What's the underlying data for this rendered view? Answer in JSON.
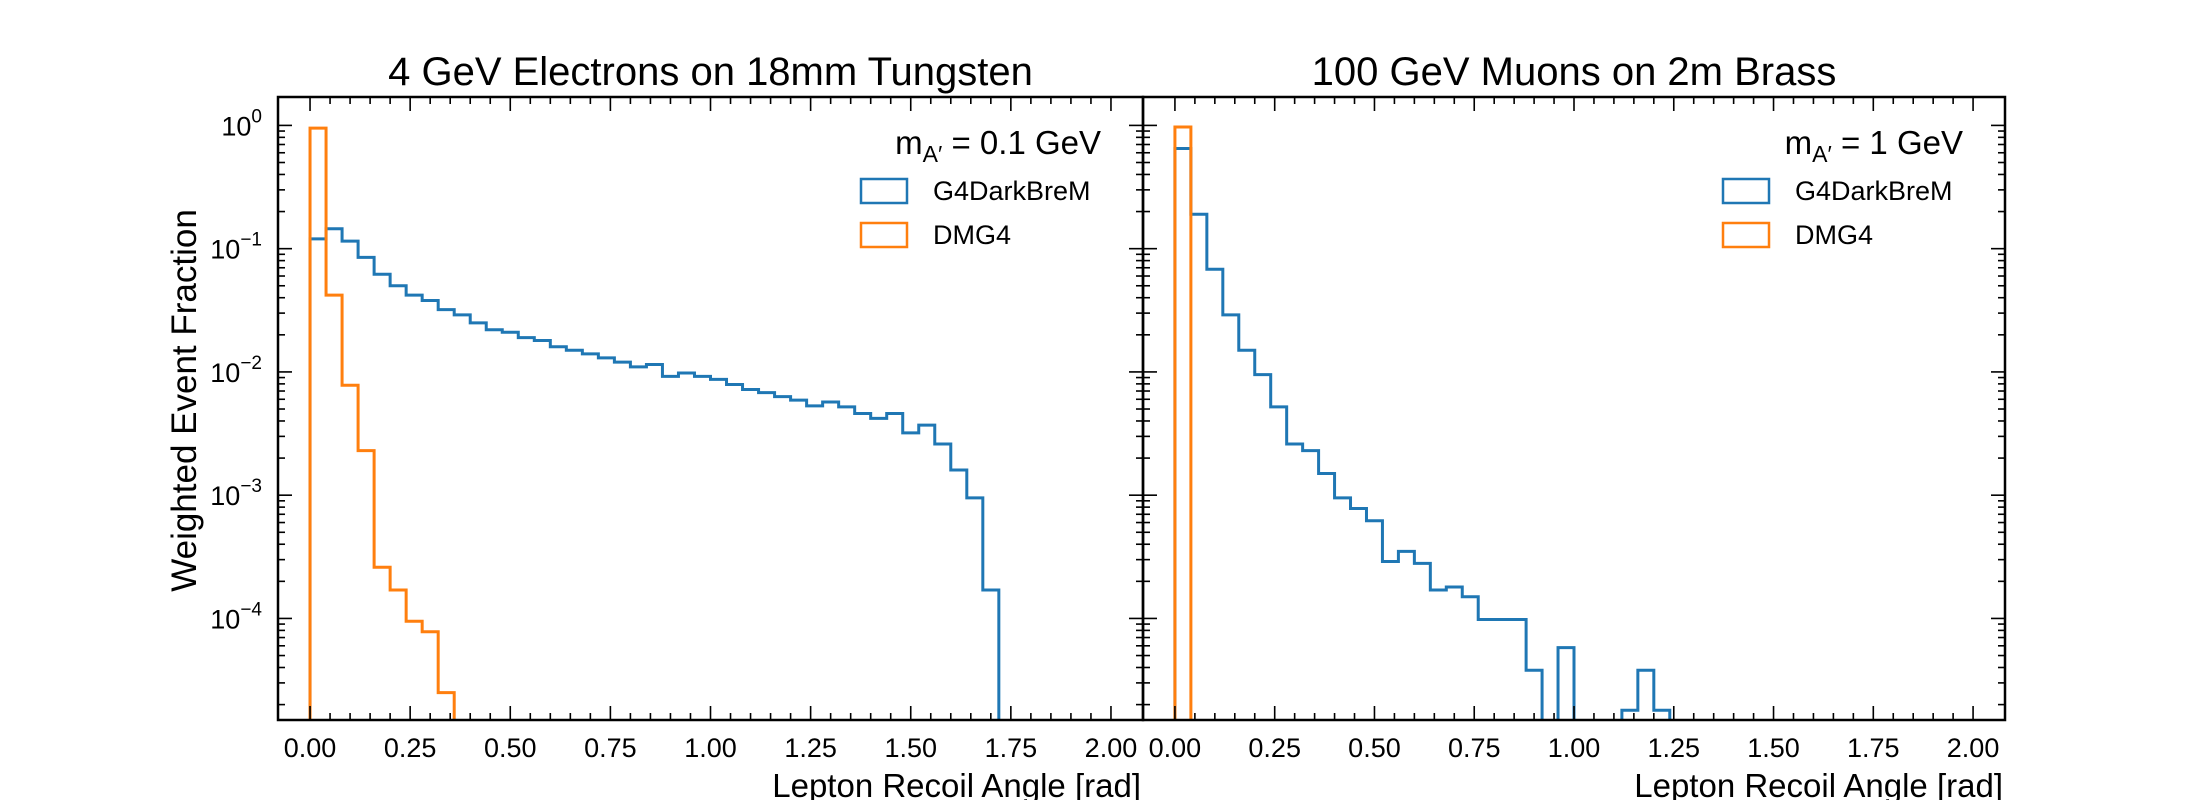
{
  "ylabel": "Weighted Event Fraction",
  "chart_data": [
    {
      "type": "histogram",
      "title": "4 GeV Electrons on 18mm Tungsten",
      "xlabel": "Lepton Recoil Angle [rad]",
      "ylabel": "Weighted Event Fraction",
      "yscale": "log",
      "xlim": [
        -0.08,
        2.08
      ],
      "ylim": [
        1.5e-05,
        1.7
      ],
      "xticks": [
        0.0,
        0.25,
        0.5,
        0.75,
        1.0,
        1.25,
        1.5,
        1.75,
        2.0
      ],
      "xtick_labels": [
        "0.00",
        "0.25",
        "0.50",
        "0.75",
        "1.00",
        "1.25",
        "1.50",
        "1.75",
        "2.00"
      ],
      "yticks": [
        {
          "base": "10",
          "exp": "0"
        },
        {
          "base": "10",
          "exp": "−1"
        },
        {
          "base": "10",
          "exp": "−2"
        },
        {
          "base": "10",
          "exp": "−3"
        },
        {
          "base": "10",
          "exp": "−4"
        }
      ],
      "annotation": {
        "text": "m",
        "sub": "A′",
        "rest": " = 0.1 GeV"
      },
      "legend_position": "top-right",
      "bin_width": 0.04,
      "series": [
        {
          "name": "G4DarkBreM",
          "color": "#1f77b4",
          "bin_start": 0.0,
          "values": [
            0.12,
            0.145,
            0.115,
            0.085,
            0.062,
            0.05,
            0.042,
            0.038,
            0.032,
            0.029,
            0.025,
            0.022,
            0.021,
            0.019,
            0.018,
            0.016,
            0.015,
            0.014,
            0.013,
            0.012,
            0.011,
            0.0115,
            0.0092,
            0.0098,
            0.0092,
            0.0087,
            0.0079,
            0.0072,
            0.0068,
            0.0063,
            0.0059,
            0.0053,
            0.0057,
            0.0052,
            0.0046,
            0.0042,
            0.0046,
            0.0032,
            0.0037,
            0.0026,
            0.0016,
            0.00095,
            0.00017
          ]
        },
        {
          "name": "DMG4",
          "color": "#ff7f0e",
          "bin_start": 0.0,
          "values": [
            0.95,
            0.042,
            0.0078,
            0.0023,
            0.00026,
            0.00017,
            9.5e-05,
            7.8e-05,
            2.5e-05
          ]
        }
      ]
    },
    {
      "type": "histogram",
      "title": "100 GeV Muons on 2m Brass",
      "xlabel": "Lepton Recoil Angle [rad]",
      "yscale": "log",
      "xlim": [
        -0.08,
        2.08
      ],
      "ylim": [
        1.5e-05,
        1.7
      ],
      "xticks": [
        0.0,
        0.25,
        0.5,
        0.75,
        1.0,
        1.25,
        1.5,
        1.75,
        2.0
      ],
      "xtick_labels": [
        "0.00",
        "0.25",
        "0.50",
        "0.75",
        "1.00",
        "1.25",
        "1.50",
        "1.75",
        "2.00"
      ],
      "annotation": {
        "text": "m",
        "sub": "A′",
        "rest": " = 1 GeV"
      },
      "legend_position": "top-right",
      "bin_width": 0.04,
      "series": [
        {
          "name": "G4DarkBreM",
          "color": "#1f77b4",
          "bin_start": 0.0,
          "values": [
            0.65,
            0.19,
            0.068,
            0.029,
            0.015,
            0.0095,
            0.0052,
            0.0026,
            0.0023,
            0.0015,
            0.00095,
            0.00078,
            0.00062,
            0.00029,
            0.00035,
            0.00028,
            0.00017,
            0.00018,
            0.00015,
            9.8e-05,
            9.8e-05,
            9.8e-05,
            3.8e-05,
            0.0,
            5.8e-05,
            0.0,
            0.0,
            0.0,
            1.8e-05,
            3.8e-05,
            1.8e-05
          ]
        },
        {
          "name": "DMG4",
          "color": "#ff7f0e",
          "bin_start": 0.0,
          "values": [
            0.97
          ]
        }
      ]
    }
  ]
}
